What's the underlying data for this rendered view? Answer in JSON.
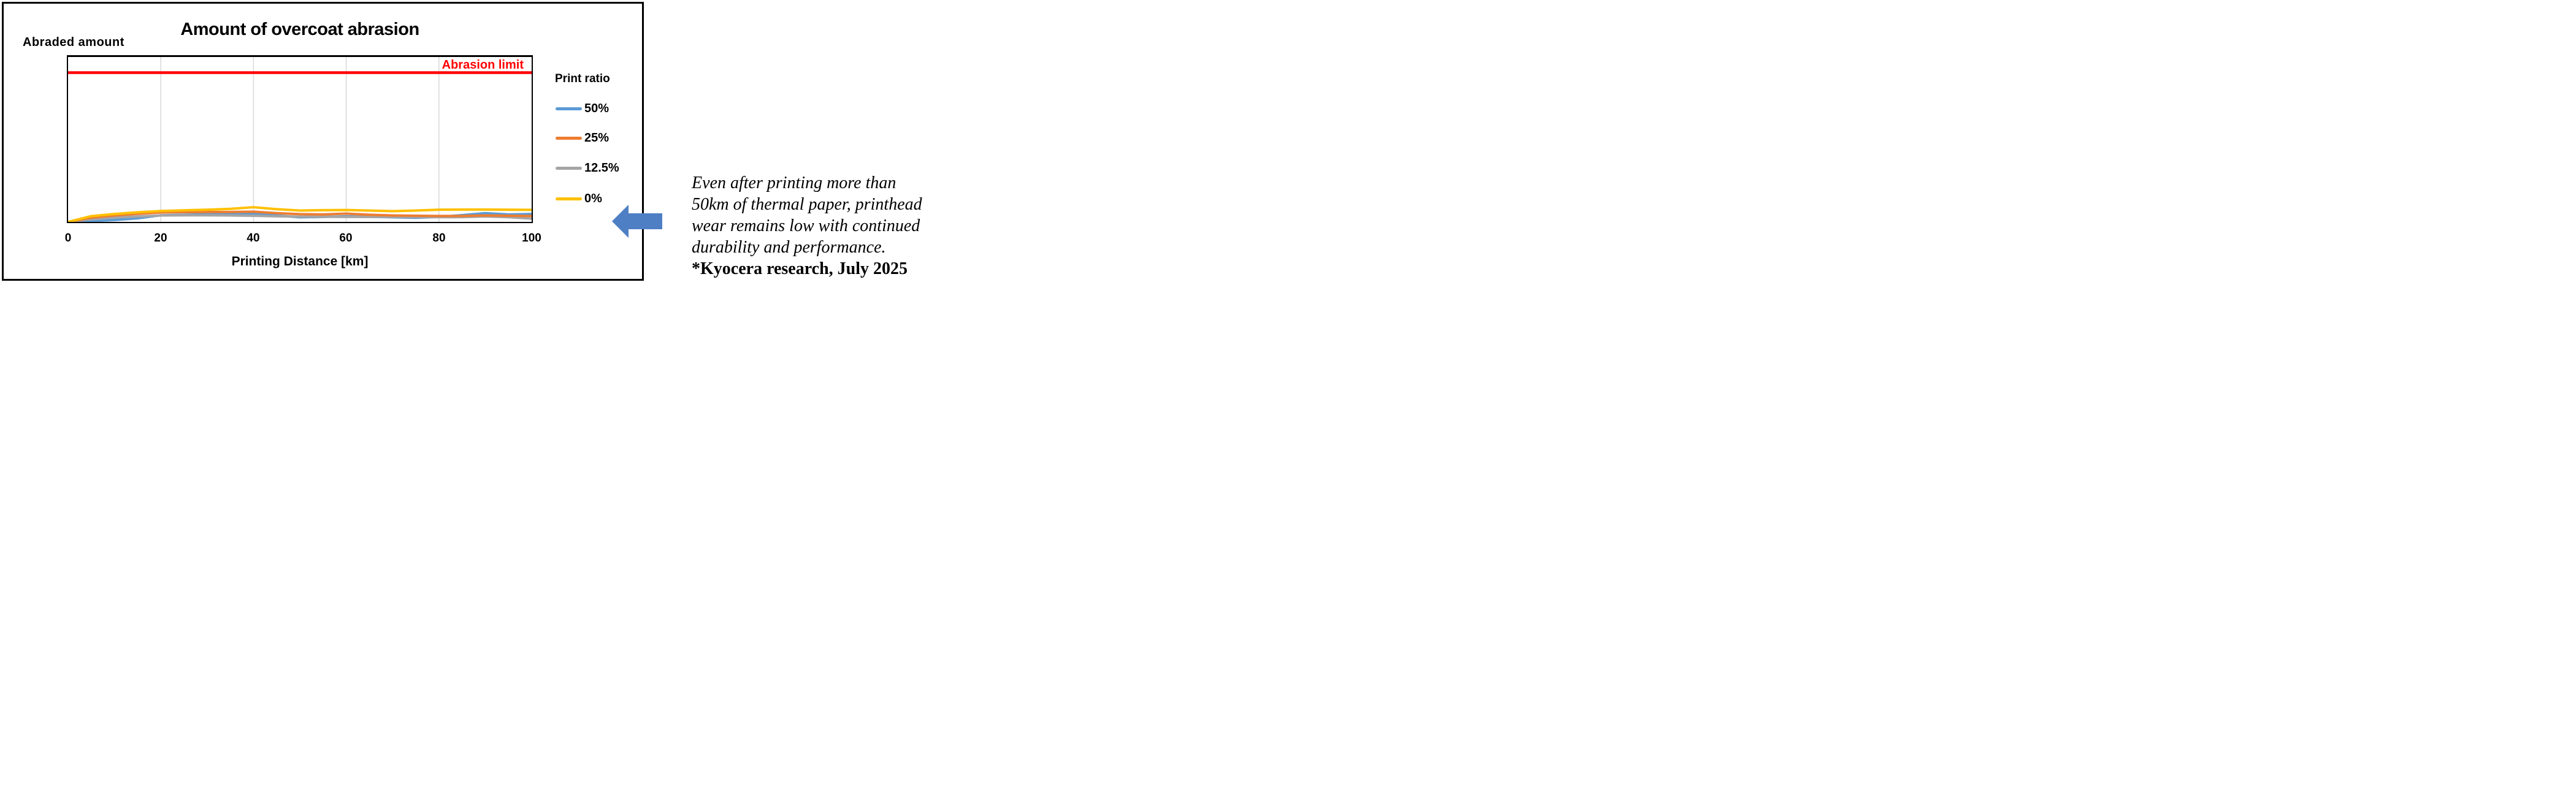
{
  "figure": {
    "title": "Amount of overcoat abrasion",
    "y_axis_label": "Abraded  amount",
    "limit_label": "Abrasion limit",
    "x_axis_label": "Printing Distance [km]",
    "legend_title": "Print ratio",
    "x_ticks": [
      "0",
      "20",
      "40",
      "60",
      "80",
      "100"
    ]
  },
  "annotation": {
    "lines": [
      "Even after printing more than",
      "50km of thermal paper, printhead",
      "wear remains low with continued",
      "durability and performance."
    ],
    "source": "*Kyocera research, July 2025"
  },
  "colors": {
    "limit": "#FF0000",
    "arrow": "#4E7FC4",
    "grid": "#D9D9D9",
    "axis": "#000000"
  },
  "chart_data": {
    "type": "line",
    "title": "Amount of overcoat abrasion",
    "xlabel": "Printing Distance [km]",
    "ylabel": "Abraded amount",
    "x": [
      0,
      5,
      10,
      15,
      20,
      25,
      30,
      35,
      40,
      45,
      50,
      55,
      60,
      65,
      70,
      75,
      80,
      85,
      90,
      95,
      100
    ],
    "xticks": [
      0,
      20,
      40,
      60,
      80,
      100
    ],
    "ylim": [
      0,
      100
    ],
    "y_axis_ticks_shown": false,
    "grid": "vertical-only",
    "legend_position": "right",
    "legend_title": "Print ratio",
    "abrasion_limit": {
      "label": "Abrasion limit",
      "value": 90.5,
      "color": "#FF0000"
    },
    "series": [
      {
        "name": "50%",
        "color": "#5B9BD5",
        "values": [
          0,
          0.5,
          1.1,
          2.2,
          4.0,
          4.3,
          4.6,
          4.7,
          4.9,
          3.9,
          2.8,
          3.0,
          3.4,
          3.1,
          2.8,
          2.5,
          3.0,
          4.1,
          5.3,
          4.5,
          4.8
        ]
      },
      {
        "name": "25%",
        "color": "#ED7D31",
        "values": [
          0,
          2.6,
          3.9,
          4.9,
          5.7,
          5.9,
          6.0,
          6.0,
          6.2,
          5.3,
          4.7,
          4.5,
          5.0,
          4.3,
          3.9,
          3.7,
          3.6,
          3.6,
          3.9,
          3.7,
          3.6
        ]
      },
      {
        "name": "12.5%",
        "color": "#A5A5A5",
        "values": [
          0,
          1.6,
          2.6,
          3.3,
          3.9,
          4.0,
          4.0,
          3.9,
          3.7,
          3.4,
          3.2,
          3.1,
          3.0,
          3.0,
          3.0,
          3.0,
          2.9,
          2.9,
          3.3,
          2.9,
          2.0
        ]
      },
      {
        "name": "0%",
        "color": "#FFC000",
        "values": [
          0,
          3.5,
          4.8,
          5.8,
          6.6,
          7.0,
          7.4,
          7.9,
          8.9,
          7.7,
          6.9,
          7.1,
          7.2,
          6.9,
          6.5,
          6.9,
          7.4,
          7.5,
          7.5,
          7.4,
          7.3
        ]
      }
    ]
  }
}
